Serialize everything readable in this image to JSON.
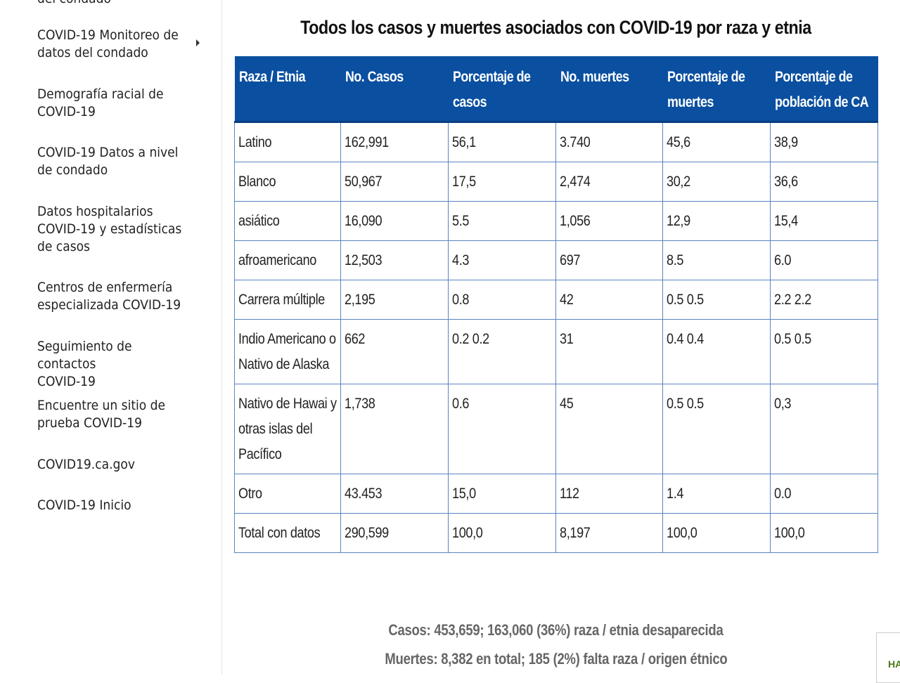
{
  "sidebar": {
    "cut_item": "del condado",
    "items": [
      {
        "label": "COVID-19 Monitoreo de\ndatos del condado",
        "has_submenu": true
      },
      {
        "label": "Demografía racial de\nCOVID-19"
      },
      {
        "label": "COVID-19 Datos a nivel\nde condado"
      },
      {
        "label": "Datos hospitalarios\nCOVID-19 y estadísticas\nde casos"
      },
      {
        "label": "Centros de enfermería\nespecializada COVID-19"
      },
      {
        "label": "Seguimiento de contactos\nCOVID-19"
      },
      {
        "label": "Encuentre un sitio de\nprueba COVID-19"
      },
      {
        "label": "COVID19.ca.gov"
      },
      {
        "label": "COVID-19 Inicio"
      }
    ]
  },
  "main": {
    "title": "Todos los casos y muertes asociados con COVID-19 por raza y etnia",
    "table": {
      "header_color": "#0a4fa0",
      "columns": [
        "Raza / Etnia",
        "No. Casos",
        "Porcentaje de casos",
        "No. muertes",
        "Porcentaje de muertes",
        "Porcentaje de población de CA"
      ],
      "rows": [
        [
          "Latino",
          "162,991",
          "56,1",
          "3.740",
          "45,6",
          "38,9"
        ],
        [
          "Blanco",
          "50,967",
          "17,5",
          "2,474",
          "30,2",
          "36,6"
        ],
        [
          "asiático",
          "16,090",
          "5.5",
          "1,056",
          "12,9",
          "15,4"
        ],
        [
          "afroamericano",
          "12,503",
          "4.3",
          "697",
          "8.5",
          "6.0"
        ],
        [
          "Carrera múltiple",
          "2,195",
          "0.8",
          "42",
          "0.5 0.5",
          "2.2 2.2"
        ],
        [
          "Indio Americano o Nativo de Alaska",
          "662",
          "0.2 0.2",
          "31",
          "0.4 0.4",
          "0.5 0.5"
        ],
        [
          "Nativo de Hawai y otras islas del Pacífico",
          "1,738",
          "0.6",
          "45",
          "0.5 0.5",
          "0,3"
        ],
        [
          "Otro",
          "43.453",
          "15,0",
          "112",
          "1.4",
          "0.0"
        ],
        [
          "Total con datos",
          "290,599",
          "100,0",
          "8,197",
          "100,0",
          "100,0"
        ]
      ]
    },
    "summary": {
      "cases": "Casos: 453,659; 163,060 (36%) raza / etnia desaparecida",
      "deaths": "Muertes: 8,382 en total; 185 (2%) falta raza / origen étnico"
    },
    "badge_text": "HA"
  }
}
